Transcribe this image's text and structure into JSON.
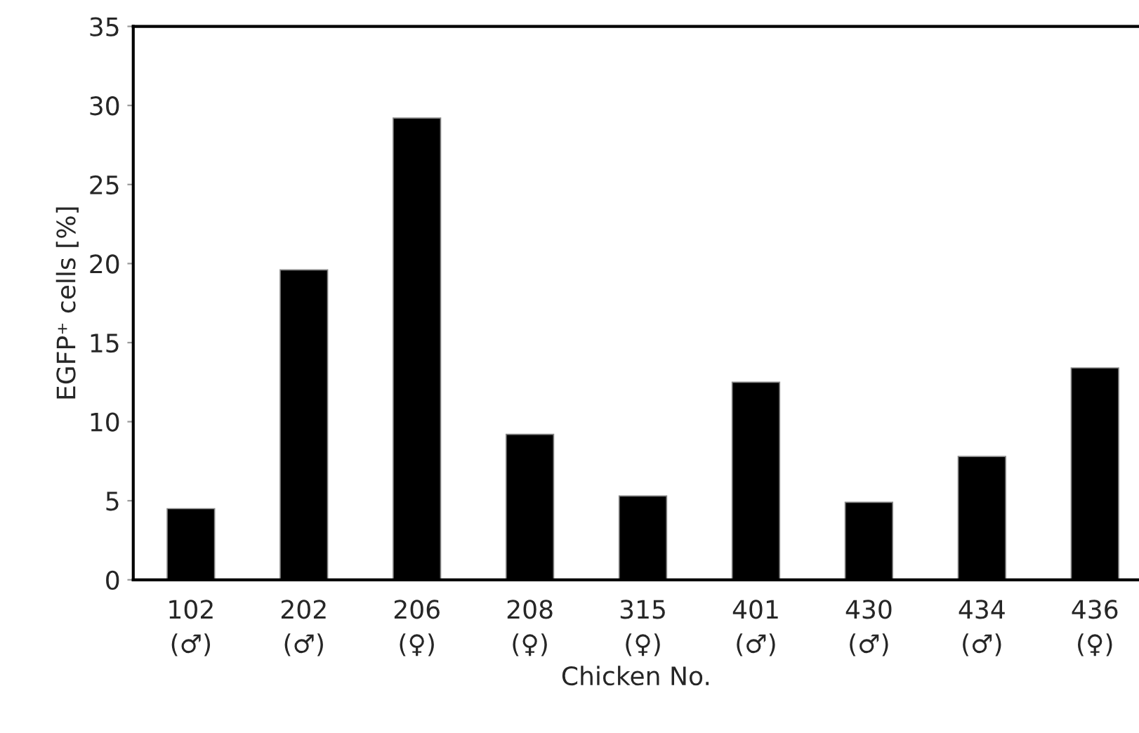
{
  "chart_data": {
    "type": "bar",
    "xlabel": "Chicken No.",
    "ylabel": "EGFP⁺ cells [%]",
    "categories": [
      "102\n(♂)",
      "202\n(♂)",
      "206\n(♀)",
      "208\n(♀)",
      "315\n(♀)",
      "401\n(♂)",
      "430\n(♂)",
      "434\n(♂)",
      "436\n(♀)"
    ],
    "values": [
      4.5,
      19.6,
      29.2,
      9.2,
      5.3,
      12.5,
      4.9,
      7.8,
      13.4
    ],
    "color": "#000000",
    "ylim": [
      0,
      35
    ],
    "yticks": [
      0,
      5,
      10,
      15,
      20,
      25,
      30,
      35
    ],
    "grid": false,
    "legend": false
  }
}
